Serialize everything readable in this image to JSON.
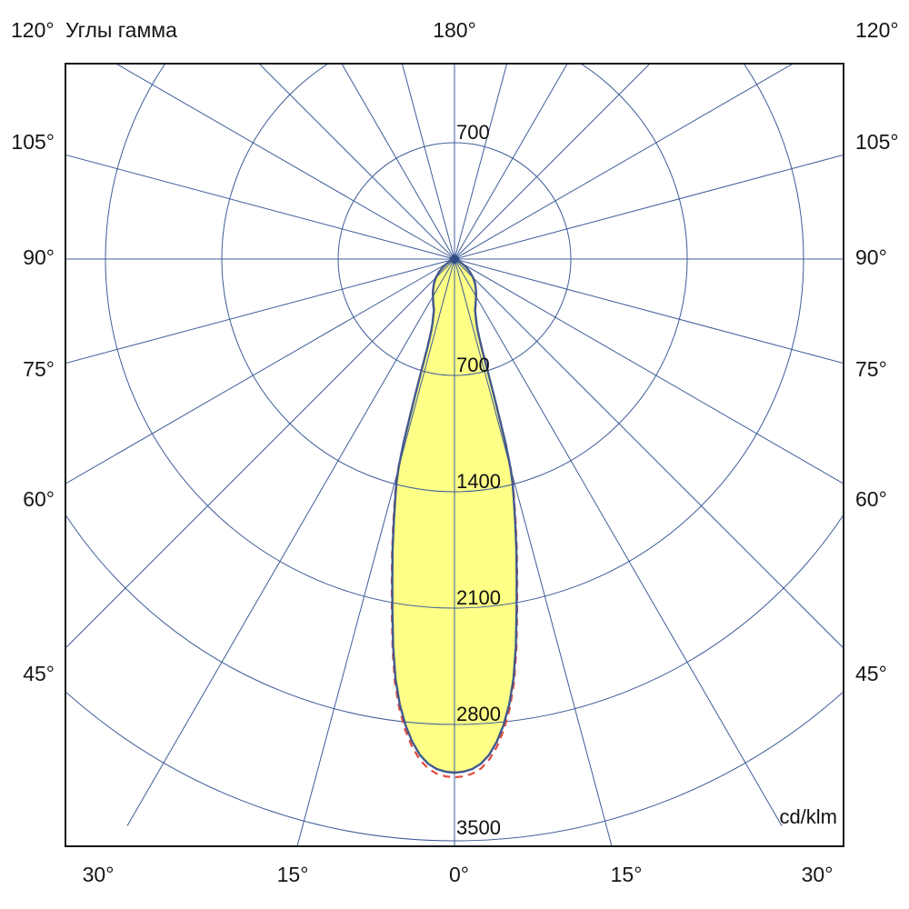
{
  "header": {
    "left_angle": "120°",
    "title": "Углы гамма",
    "top_angle": "180°",
    "right_angle": "120°"
  },
  "axis": {
    "left_labels": [
      "105°",
      "90°",
      "75°",
      "60°",
      "45°"
    ],
    "right_labels": [
      "105°",
      "90°",
      "75°",
      "60°",
      "45°"
    ],
    "bottom_labels": [
      "30°",
      "15°",
      "0°",
      "15°",
      "30°"
    ],
    "unit": "cd/klm"
  },
  "rings": {
    "upper_label": "700",
    "labels": [
      "700",
      "1400",
      "2100",
      "2800",
      "3500"
    ]
  },
  "chart_data": {
    "type": "polar-intensity-curve",
    "title": "Углы гамма",
    "unit": "cd/klm",
    "gamma_axis_labels_deg": [
      0,
      15,
      30,
      45,
      60,
      75,
      90,
      105,
      120,
      180
    ],
    "grid_angle_step_deg": 15,
    "ring_values": [
      700,
      1400,
      2100,
      2800,
      3500
    ],
    "ring_step": 700,
    "peak_intensity_cd_klm": 3090,
    "gamma_deg": [
      0,
      1,
      2,
      3,
      4,
      5,
      6,
      7,
      8,
      9,
      10,
      11,
      12,
      13,
      14,
      14.5,
      15,
      15.5,
      16,
      16.5,
      17,
      17.5,
      18,
      19,
      20,
      22,
      25,
      28,
      30,
      33,
      36,
      40,
      45,
      50,
      55,
      60,
      65,
      70,
      75
    ],
    "series": [
      {
        "name": "solid-blue-curve",
        "color": "#41598e",
        "style": "solid",
        "intensity": [
          3090,
          3085,
          3070,
          3040,
          2990,
          2915,
          2820,
          2700,
          2550,
          2360,
          2150,
          1960,
          1790,
          1625,
          1470,
          1395,
          1300,
          1150,
          900,
          700,
          560,
          495,
          450,
          405,
          375,
          330,
          300,
          275,
          258,
          238,
          218,
          192,
          158,
          122,
          85,
          52,
          26,
          8,
          0
        ]
      },
      {
        "name": "dashed-red-curve",
        "color": "#e0493f",
        "style": "dashed",
        "intensity": [
          3118,
          3113,
          3098,
          3068,
          3017,
          2942,
          2846,
          2725,
          2573,
          2382,
          2170,
          1978,
          1806,
          1640,
          1483,
          1408,
          1312,
          1161,
          909,
          707,
          566,
          500,
          455,
          409,
          379,
          333,
          303,
          278,
          261,
          240,
          220,
          194,
          160,
          123,
          86,
          53,
          26,
          8,
          0
        ]
      }
    ],
    "fill_color": "#fdff86",
    "grid_color": "#3f5c99",
    "border_color": "#161616"
  }
}
